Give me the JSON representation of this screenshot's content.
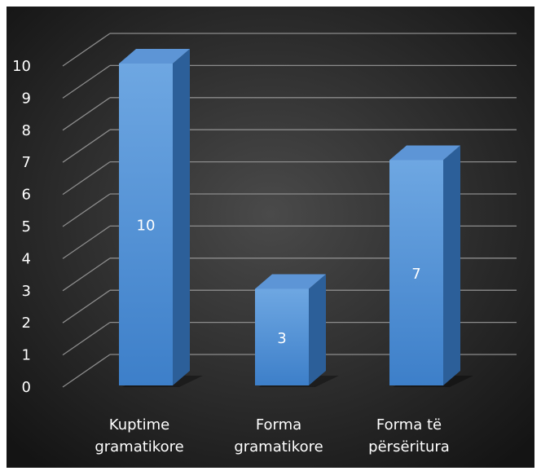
{
  "chart_data": {
    "type": "bar",
    "style": "3d-column",
    "categories": [
      [
        "Kuptime",
        "gramatikore"
      ],
      [
        "Forma",
        "gramatikore"
      ],
      [
        "Forma të",
        "përsëritura"
      ]
    ],
    "values": [
      10,
      3,
      7
    ],
    "data_labels": [
      "10",
      "3",
      "7"
    ],
    "y_ticks": [
      "0",
      "1",
      "2",
      "3",
      "4",
      "5",
      "6",
      "7",
      "8",
      "9",
      "10"
    ],
    "ylim": [
      0,
      10
    ],
    "grid": true,
    "legend": "none",
    "colors": {
      "background_center": "#4a4a4a",
      "background_edge": "#141414",
      "gridline": "#8c8c8c",
      "bar_front_light": "#6ea7e2",
      "bar_front_dark": "#3d7fc9",
      "bar_side": "#2c5f99",
      "bar_top": "#5d95d6"
    }
  }
}
